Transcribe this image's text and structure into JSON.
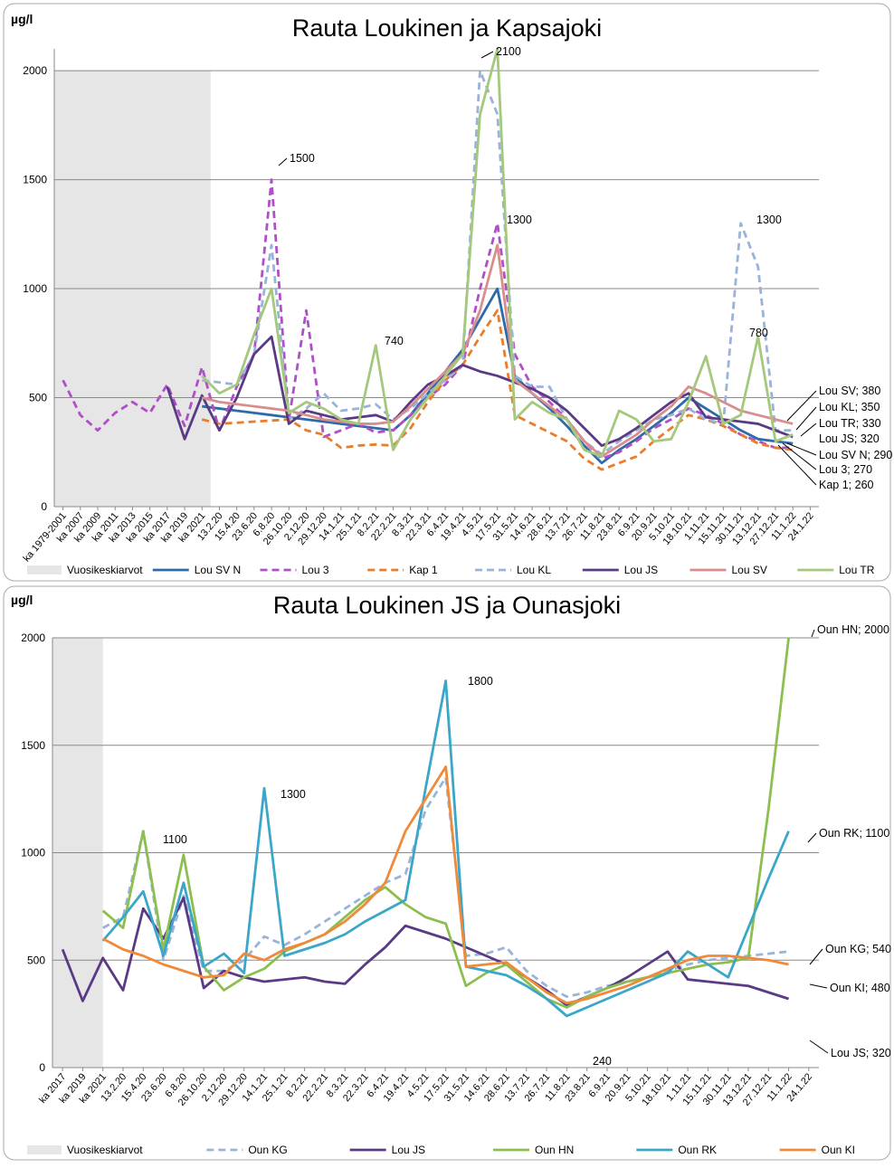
{
  "chart_data": [
    {
      "type": "line",
      "title": "Rauta Loukinen ja Kapsajoki",
      "y_label": "µg/l",
      "shade_label": "Vuosikeskiarvot",
      "categories": [
        "ka 1979-2001",
        "ka 2007",
        "ka 2009",
        "ka 2011",
        "ka 2013",
        "ka 2015",
        "ka 2017",
        "ka 2019",
        "ka 2021",
        "13.2.20",
        "15.4.20",
        "23.6.20",
        "6.8.20",
        "26.10.20",
        "2.12.20",
        "29.12.20",
        "14.1.21",
        "25.1.21",
        "8.2.21",
        "22.2.21",
        "8.3.21",
        "22.3.21",
        "6.4.21",
        "19.4.21",
        "4.5.21",
        "17.5.21",
        "31.5.21",
        "14.6.21",
        "28.6.21",
        "13.7.21",
        "26.7.21",
        "11.8.21",
        "23.8.21",
        "6.9.21",
        "20.9.21",
        "5.10.21",
        "18.10.21",
        "1.11.21",
        "15.11.21",
        "30.11.21",
        "13.12.21",
        "27.12.21",
        "11.1.22",
        "24.1.22"
      ],
      "ylim": [
        0,
        2100
      ],
      "yticks": [
        0,
        500,
        1000,
        1500,
        2000
      ],
      "grid": true,
      "series": [
        {
          "name": "Lou SV N",
          "color": "#2e6aa8",
          "dashed": false,
          "values": [
            null,
            null,
            null,
            null,
            null,
            null,
            null,
            null,
            460,
            450,
            440,
            430,
            420,
            410,
            400,
            390,
            380,
            370,
            360,
            350,
            420,
            520,
            620,
            720,
            860,
            1000,
            600,
            520,
            450,
            370,
            280,
            200,
            260,
            310,
            370,
            430,
            500,
            450,
            400,
            350,
            310,
            300,
            290,
            null
          ]
        },
        {
          "name": "Lou 3",
          "color": "#b04fc8",
          "dashed": true,
          "values": [
            580,
            420,
            350,
            430,
            480,
            430,
            560,
            370,
            640,
            350,
            550,
            700,
            1500,
            400,
            900,
            320,
            350,
            380,
            340,
            350,
            420,
            500,
            560,
            650,
            1000,
            1300,
            700,
            550,
            480,
            400,
            300,
            220,
            250,
            300,
            360,
            400,
            450,
            420,
            380,
            330,
            300,
            270,
            270,
            null
          ]
        },
        {
          "name": "Kap 1",
          "color": "#e87d2b",
          "dashed": true,
          "values": [
            null,
            null,
            null,
            null,
            null,
            null,
            null,
            null,
            400,
            380,
            385,
            390,
            395,
            400,
            350,
            330,
            270,
            280,
            285,
            280,
            360,
            480,
            580,
            650,
            780,
            900,
            420,
            380,
            340,
            300,
            220,
            170,
            200,
            230,
            300,
            360,
            420,
            400,
            370,
            330,
            290,
            270,
            260,
            null
          ]
        },
        {
          "name": "Lou KL",
          "color": "#9ab3d8",
          "dashed": true,
          "values": [
            null,
            null,
            null,
            null,
            null,
            null,
            null,
            null,
            580,
            570,
            560,
            700,
            1200,
            400,
            450,
            520,
            440,
            450,
            470,
            400,
            450,
            520,
            580,
            650,
            2000,
            1800,
            600,
            550,
            550,
            400,
            300,
            240,
            300,
            350,
            400,
            420,
            450,
            400,
            380,
            1300,
            1100,
            350,
            350,
            null
          ]
        },
        {
          "name": "Lou JS",
          "color": "#5a3a85",
          "dashed": false,
          "values": [
            null,
            null,
            null,
            null,
            null,
            null,
            550,
            310,
            510,
            350,
            500,
            700,
            780,
            380,
            440,
            420,
            400,
            410,
            420,
            390,
            480,
            560,
            600,
            650,
            620,
            600,
            570,
            540,
            500,
            440,
            360,
            280,
            310,
            360,
            420,
            480,
            520,
            410,
            400,
            390,
            380,
            350,
            320,
            null
          ]
        },
        {
          "name": "Lou SV",
          "color": "#d98e8e",
          "dashed": false,
          "values": [
            null,
            null,
            null,
            null,
            null,
            null,
            null,
            null,
            500,
            480,
            470,
            460,
            450,
            440,
            420,
            400,
            390,
            380,
            380,
            390,
            460,
            540,
            620,
            700,
            900,
            1200,
            580,
            520,
            460,
            400,
            300,
            230,
            280,
            330,
            400,
            460,
            550,
            520,
            480,
            440,
            420,
            400,
            380,
            null
          ]
        },
        {
          "name": "Lou TR",
          "color": "#a4c87c",
          "dashed": false,
          "values": [
            null,
            null,
            null,
            null,
            null,
            null,
            null,
            null,
            600,
            520,
            560,
            790,
            1000,
            430,
            480,
            450,
            400,
            380,
            740,
            260,
            400,
            500,
            600,
            700,
            1800,
            2100,
            400,
            480,
            430,
            400,
            260,
            230,
            440,
            400,
            300,
            310,
            480,
            690,
            380,
            420,
            780,
            300,
            330,
            null
          ]
        }
      ],
      "annotations": [
        "2100",
        "1500",
        "1300",
        "740",
        "1300",
        "780",
        "Lou SV; 380",
        "Lou KL; 350",
        "Lou TR; 330",
        "Lou JS; 320",
        "Lou SV N; 290",
        "Lou 3; 270",
        "Kap 1; 260"
      ]
    },
    {
      "type": "line",
      "title": "Rauta Loukinen JS ja Ounasjoki",
      "y_label": "µg/l",
      "shade_label": "Vuosikeskiarvot",
      "categories": [
        "ka 2017",
        "ka 2019",
        "ka 2021",
        "13.2.20",
        "15.4.20",
        "23.6.20",
        "6.8.20",
        "26.10.20",
        "2.12.20",
        "29.12.20",
        "14.1.21",
        "25.1.21",
        "8.2.21",
        "22.2.21",
        "8.3.21",
        "22.3.21",
        "6.4.21",
        "19.4.21",
        "4.5.21",
        "17.5.21",
        "31.5.21",
        "14.6.21",
        "28.6.21",
        "13.7.21",
        "26.7.21",
        "11.8.21",
        "23.8.21",
        "6.9.21",
        "20.9.21",
        "5.10.21",
        "18.10.21",
        "1.11.21",
        "15.11.21",
        "30.11.21",
        "13.12.21",
        "27.12.21",
        "11.1.22",
        "24.1.22"
      ],
      "ylim": [
        0,
        2000
      ],
      "yticks": [
        0,
        500,
        1000,
        1500,
        2000
      ],
      "grid": true,
      "series": [
        {
          "name": "Oun KG",
          "color": "#9ab3d8",
          "dashed": true,
          "values": [
            null,
            null,
            650,
            700,
            1100,
            500,
            800,
            450,
            450,
            500,
            610,
            570,
            620,
            680,
            740,
            800,
            860,
            900,
            1200,
            1350,
            520,
            530,
            560,
            450,
            380,
            330,
            350,
            380,
            400,
            420,
            450,
            480,
            500,
            510,
            520,
            530,
            540,
            null
          ]
        },
        {
          "name": "Lou JS",
          "color": "#5a3a85",
          "dashed": false,
          "values": [
            550,
            310,
            510,
            360,
            740,
            600,
            790,
            370,
            450,
            420,
            400,
            410,
            420,
            400,
            390,
            480,
            560,
            660,
            630,
            600,
            560,
            520,
            480,
            420,
            360,
            290,
            330,
            370,
            420,
            480,
            540,
            410,
            400,
            390,
            380,
            350,
            320,
            null
          ]
        },
        {
          "name": "Oun HN",
          "color": "#8cbf4f",
          "dashed": false,
          "values": [
            null,
            null,
            730,
            650,
            1100,
            550,
            990,
            470,
            360,
            420,
            460,
            540,
            580,
            620,
            700,
            780,
            840,
            760,
            700,
            670,
            380,
            440,
            480,
            400,
            320,
            280,
            330,
            370,
            400,
            420,
            440,
            460,
            480,
            490,
            510,
            1200,
            2000,
            null
          ]
        },
        {
          "name": "Oun RK",
          "color": "#3aa6c8",
          "dashed": false,
          "values": [
            null,
            null,
            590,
            700,
            820,
            520,
            860,
            470,
            530,
            440,
            1300,
            520,
            550,
            580,
            620,
            680,
            730,
            780,
            1300,
            1800,
            470,
            450,
            430,
            380,
            320,
            240,
            280,
            320,
            360,
            400,
            440,
            540,
            480,
            420,
            650,
            880,
            1100,
            null
          ]
        },
        {
          "name": "Oun KI",
          "color": "#f08a3a",
          "dashed": false,
          "values": [
            null,
            null,
            600,
            550,
            520,
            480,
            450,
            420,
            430,
            530,
            500,
            550,
            580,
            620,
            680,
            760,
            860,
            1100,
            1250,
            1400,
            470,
            480,
            490,
            420,
            350,
            300,
            320,
            350,
            380,
            420,
            460,
            500,
            520,
            520,
            510,
            500,
            480,
            null
          ]
        }
      ],
      "annotations": [
        "1100",
        "1300",
        "1800",
        "240",
        "Oun HN; 2000",
        "Oun RK; 1100",
        "Oun KG; 540",
        "Oun KI; 480",
        "Lou JS; 320"
      ]
    }
  ]
}
